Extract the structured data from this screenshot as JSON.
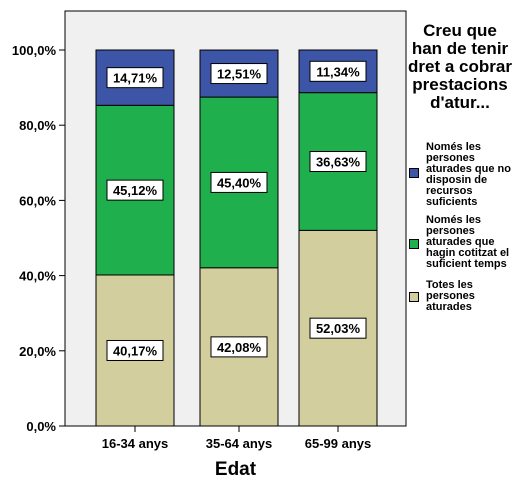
{
  "chart_data": {
    "type": "bar",
    "stacked": true,
    "categories": [
      "16-34 anys",
      "35-64 anys",
      "65-99 anys"
    ],
    "xlabel": "Edat",
    "ylabel": "",
    "ylim": [
      0,
      100
    ],
    "yticks": [
      "0,0%",
      "20,0%",
      "40,0%",
      "60,0%",
      "80,0%",
      "100,0%"
    ],
    "legend_title": "Creu que han de tenir dret a cobrar prestacions d'atur...",
    "legend_position": "right",
    "series": [
      {
        "name": "Totes les persones aturades",
        "color": "#d3ce9e",
        "values": [
          40.17,
          42.08,
          52.03
        ],
        "labels": [
          "40,17%",
          "42,08%",
          "52,03%"
        ]
      },
      {
        "name": "Només les persones aturades que hagin cotitzat el suficient temps",
        "color": "#1fb04d",
        "values": [
          45.12,
          45.4,
          36.63
        ],
        "labels": [
          "45,12%",
          "45,40%",
          "36,63%"
        ]
      },
      {
        "name": "Només les persones aturades que no disposin de recursos suficients",
        "color": "#3d55a7",
        "values": [
          14.71,
          12.51,
          11.34
        ],
        "labels": [
          "14,71%",
          "12,51%",
          "11,34%"
        ]
      }
    ],
    "plot_background": "#f0f0f0",
    "grid": false
  }
}
